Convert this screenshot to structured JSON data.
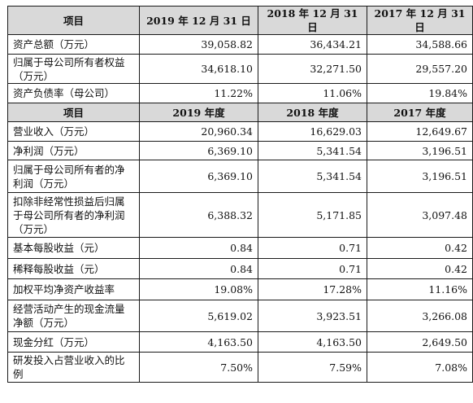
{
  "table": {
    "header1": [
      "项目",
      "2019 年 12 月 31 日",
      "2018 年 12 月 31 日",
      "2017 年 12 月 31 日"
    ],
    "section1": [
      {
        "label": "资产总额（万元）",
        "values": [
          "39,058.82",
          "36,434.21",
          "34,588.66"
        ]
      },
      {
        "label": "归属于母公司所有者权益（万元）",
        "values": [
          "34,618.10",
          "32,271.50",
          "29,557.20"
        ]
      },
      {
        "label": "资产负债率（母公司）",
        "values": [
          "11.22%",
          "11.06%",
          "19.84%"
        ]
      }
    ],
    "header2": [
      "项目",
      "2019 年度",
      "2018 年度",
      "2017 年度"
    ],
    "section2": [
      {
        "label": "营业收入（万元）",
        "values": [
          "20,960.34",
          "16,629.03",
          "12,649.67"
        ]
      },
      {
        "label": "净利润（万元）",
        "values": [
          "6,369.10",
          "5,341.54",
          "3,196.51"
        ]
      },
      {
        "label": "归属于母公司所有者的净利润（万元）",
        "values": [
          "6,369.10",
          "5,341.54",
          "3,196.51"
        ]
      },
      {
        "label": "扣除非经常性损益后归属于母公司所有者的净利润（万元）",
        "values": [
          "6,388.32",
          "5,171.85",
          "3,097.48"
        ]
      },
      {
        "label": "基本每股收益（元）",
        "values": [
          "0.84",
          "0.71",
          "0.42"
        ]
      },
      {
        "label": "稀释每股收益（元）",
        "values": [
          "0.84",
          "0.71",
          "0.42"
        ]
      },
      {
        "label": "加权平均净资产收益率",
        "values": [
          "19.08%",
          "17.28%",
          "11.16%"
        ]
      },
      {
        "label": "经营活动产生的现金流量净额（万元）",
        "values": [
          "5,619.02",
          "3,923.51",
          "3,266.08"
        ]
      },
      {
        "label": "现金分红（万元）",
        "values": [
          "4,163.50",
          "4,163.50",
          "2,649.50"
        ]
      },
      {
        "label": "研发投入占营业收入的比例",
        "values": [
          "7.50%",
          "7.59%",
          "7.08%"
        ]
      }
    ]
  }
}
